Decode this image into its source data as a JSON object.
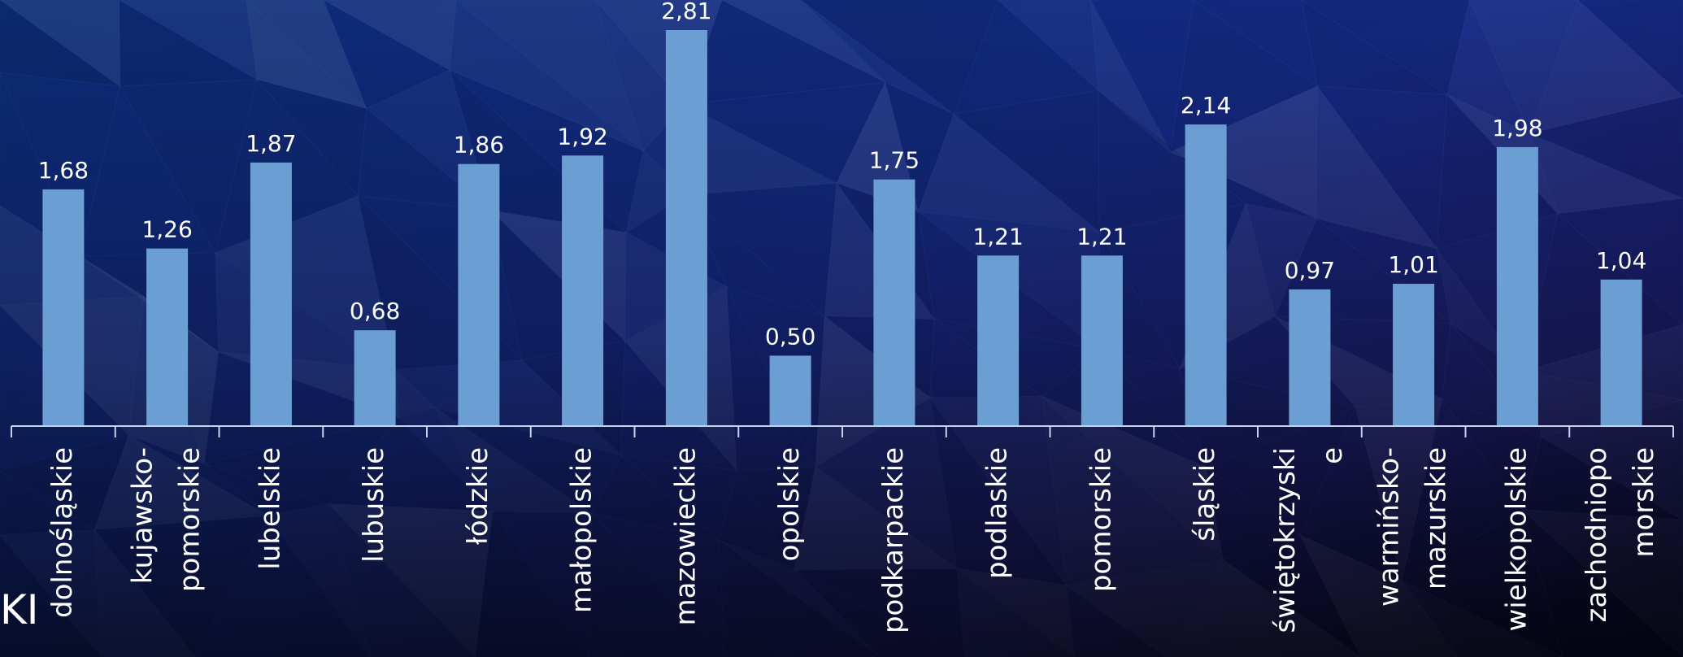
{
  "corner_text": "KI",
  "colors": {
    "bar": "#6b9fd3",
    "text": "#ffffff",
    "axis": "#c6d3ea",
    "bg_top_left": "#0d2a6e",
    "bg_top_right": "#2a238a",
    "bg_bottom": "#050b24"
  },
  "chart_data": {
    "type": "bar",
    "categories": [
      [
        "dolnośląskie"
      ],
      [
        "kujawsko-",
        "pomorskie"
      ],
      [
        "lubelskie"
      ],
      [
        "lubuskie"
      ],
      [
        "łódzkie"
      ],
      [
        "małopolskie"
      ],
      [
        "mazowieckie"
      ],
      [
        "opolskie"
      ],
      [
        "podkarpackie"
      ],
      [
        "podlaskie"
      ],
      [
        "pomorskie"
      ],
      [
        "śląskie"
      ],
      [
        "świętokrzyski",
        "e"
      ],
      [
        "warmińsko-",
        "mazurskie"
      ],
      [
        "wielkopolskie"
      ],
      [
        "zachodniopo",
        "morskie"
      ]
    ],
    "values": [
      1.68,
      1.26,
      1.87,
      0.68,
      1.86,
      1.92,
      2.81,
      0.5,
      1.75,
      1.21,
      1.21,
      2.14,
      0.97,
      1.01,
      1.98,
      1.04
    ],
    "value_labels": [
      "1,68",
      "1,26",
      "1,87",
      "0,68",
      "1,86",
      "1,92",
      "2,81",
      "0,50",
      "1,75",
      "1,21",
      "1,21",
      "2,14",
      "0,97",
      "1,01",
      "1,98",
      "1,04"
    ],
    "ylim": [
      0,
      3.0
    ],
    "grid": false,
    "legend": "none"
  }
}
